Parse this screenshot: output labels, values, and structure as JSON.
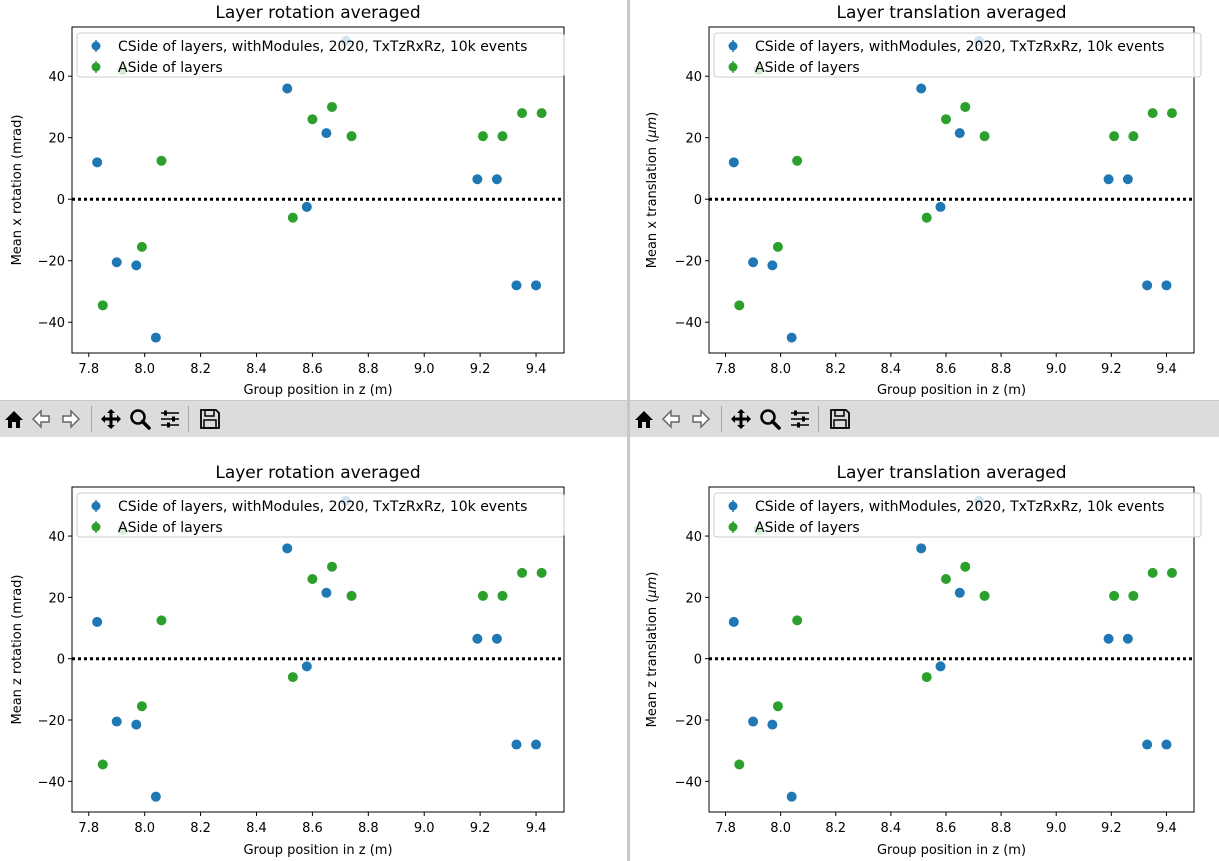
{
  "windows": [
    {
      "title": "Layer rotation averaged",
      "xlabel": "Group position in z (m)",
      "ylabel": "Mean x rotation (mrad)",
      "ylabel_unit_italic": false,
      "series_ref": "rotation"
    },
    {
      "title": "Layer translation averaged",
      "xlabel": "Group position in z (m)",
      "ylabel": "Mean x translation (",
      "ylabel_unit": "μm",
      "ylabel_tail": ")",
      "ylabel_unit_italic": true,
      "series_ref": "translation"
    },
    {
      "title": "Layer rotation averaged",
      "xlabel": "Group position in z (m)",
      "ylabel": "Mean z rotation (mrad)",
      "ylabel_unit_italic": false,
      "series_ref": "rotation"
    },
    {
      "title": "Layer translation averaged",
      "xlabel": "Group position in z (m)",
      "ylabel": "Mean z translation (",
      "ylabel_unit": "μm",
      "ylabel_tail": ")",
      "ylabel_unit_italic": true,
      "series_ref": "translation"
    }
  ],
  "toolbar": {
    "buttons": [
      {
        "name": "home-button",
        "icon": "home-icon"
      },
      {
        "name": "back-button",
        "icon": "arrow-left-icon"
      },
      {
        "name": "forward-button",
        "icon": "arrow-right-icon"
      },
      {
        "name": "pan-button",
        "icon": "move-icon"
      },
      {
        "name": "zoom-button",
        "icon": "magnifier-icon"
      },
      {
        "name": "configure-subplots-button",
        "icon": "sliders-icon"
      },
      {
        "name": "save-button",
        "icon": "floppy-disk-icon"
      }
    ]
  },
  "chart_data": {
    "type": "scatter",
    "xlim": [
      7.74,
      9.5
    ],
    "ylim": [
      -50,
      56
    ],
    "xticks": [
      "7.8",
      "8.0",
      "8.2",
      "8.4",
      "8.6",
      "8.8",
      "9.0",
      "9.2",
      "9.4"
    ],
    "xtick_values": [
      7.8,
      8.0,
      8.2,
      8.4,
      8.6,
      8.8,
      9.0,
      9.2,
      9.4
    ],
    "yticks": [
      "−40",
      "−20",
      "0",
      "20",
      "40"
    ],
    "ytick_values": [
      -40,
      -20,
      0,
      20,
      40
    ],
    "zero_line": {
      "y": 0,
      "style": "dotted",
      "color": "#000000"
    },
    "legend_position": "upper left",
    "grid": false,
    "series": [
      {
        "name": "CSide of layers, withModules, 2020, TxTzRxRz, 10k events",
        "color": "#1f77b4",
        "x": [
          7.83,
          7.9,
          7.97,
          8.04,
          8.51,
          8.58,
          8.65,
          8.72,
          9.19,
          9.26,
          9.33,
          9.4
        ],
        "y": [
          12,
          -20.5,
          -21.5,
          -45,
          36,
          -2.5,
          21.5,
          51.5,
          6.5,
          6.5,
          -28,
          -28
        ]
      },
      {
        "name": "ASide of layers",
        "color": "#2ca02c",
        "x": [
          7.85,
          7.92,
          7.99,
          8.06,
          8.53,
          8.6,
          8.67,
          8.74,
          9.21,
          9.28,
          9.35,
          9.42
        ],
        "y": [
          -34.5,
          42,
          -15.5,
          12.5,
          -6,
          26,
          30,
          20.5,
          20.5,
          20.5,
          28,
          28
        ]
      }
    ]
  }
}
